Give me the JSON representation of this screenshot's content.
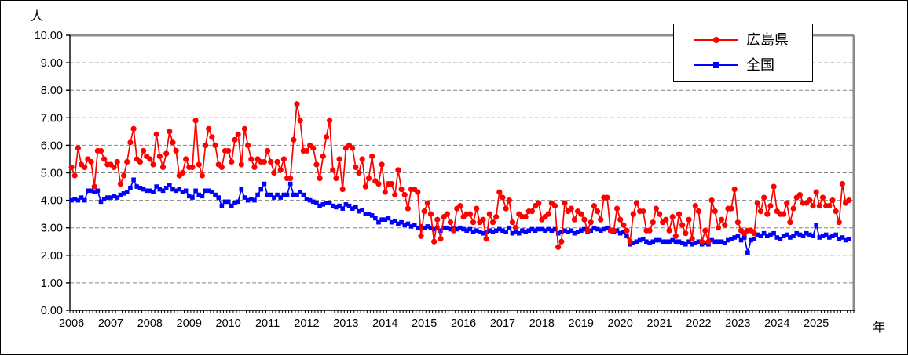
{
  "chart_data": {
    "type": "line",
    "title": "",
    "y_axis_label": "人",
    "x_axis_label": "年",
    "ylim": [
      0,
      10
    ],
    "y_tick_labels": [
      "0.00",
      "1.00",
      "2.00",
      "3.00",
      "4.00",
      "5.00",
      "6.00",
      "7.00",
      "8.00",
      "9.00",
      "10.00"
    ],
    "years": [
      2006,
      2007,
      2008,
      2009,
      2010,
      2011,
      2012,
      2013,
      2014,
      2015,
      2016,
      2017,
      2018,
      2019,
      2020,
      2021,
      2022,
      2023,
      2024,
      2025
    ],
    "x_unit": "month",
    "x_range": [
      "2006-01",
      "2025-11"
    ],
    "grid": "horizontal-dashed",
    "legend_position": "top-right",
    "background": "#FFFFFF",
    "grid_color": "#848484",
    "plot_border_color": "#8C8C8C",
    "axis_color": "#000000",
    "series": [
      {
        "name": "広島県",
        "color": "#FF0000",
        "marker": "circle",
        "values": [
          5.2,
          4.9,
          5.9,
          5.3,
          5.2,
          5.5,
          5.4,
          4.5,
          5.8,
          5.8,
          5.5,
          5.3,
          5.3,
          5.2,
          5.4,
          4.6,
          4.9,
          5.4,
          6.1,
          6.6,
          5.5,
          5.4,
          5.8,
          5.6,
          5.5,
          5.3,
          6.4,
          5.6,
          5.2,
          5.7,
          6.5,
          6.1,
          5.8,
          4.9,
          5.0,
          5.5,
          5.2,
          5.2,
          6.9,
          5.3,
          4.9,
          6.0,
          6.6,
          6.3,
          6.0,
          5.3,
          5.2,
          5.8,
          5.8,
          5.4,
          6.2,
          6.4,
          5.3,
          6.6,
          6.0,
          5.5,
          5.2,
          5.5,
          5.4,
          5.4,
          5.8,
          5.4,
          5.0,
          5.4,
          5.1,
          5.5,
          4.8,
          4.8,
          6.2,
          7.5,
          6.9,
          5.8,
          5.8,
          6.0,
          5.9,
          5.3,
          4.8,
          5.6,
          6.3,
          6.9,
          5.1,
          4.8,
          5.5,
          4.4,
          5.9,
          6.0,
          5.9,
          5.2,
          5.0,
          5.5,
          4.5,
          4.8,
          5.6,
          4.7,
          4.6,
          5.3,
          4.3,
          4.6,
          4.6,
          4.2,
          5.1,
          4.4,
          4.2,
          3.7,
          4.4,
          4.4,
          4.3,
          2.7,
          3.6,
          3.9,
          3.5,
          2.5,
          3.3,
          2.6,
          3.4,
          3.5,
          3.2,
          2.9,
          3.7,
          3.8,
          3.4,
          3.5,
          3.5,
          3.2,
          3.7,
          3.2,
          3.3,
          2.6,
          3.5,
          3.2,
          3.4,
          4.3,
          4.1,
          3.7,
          4.0,
          3.2,
          3.0,
          3.5,
          3.4,
          3.4,
          3.6,
          3.6,
          3.8,
          3.9,
          3.3,
          3.4,
          3.5,
          3.9,
          3.8,
          2.3,
          2.5,
          3.9,
          3.6,
          3.7,
          3.3,
          3.6,
          3.5,
          3.3,
          2.9,
          3.2,
          3.8,
          3.6,
          3.3,
          4.1,
          4.1,
          2.9,
          2.9,
          3.7,
          3.3,
          3.1,
          2.9,
          2.5,
          3.5,
          3.9,
          3.6,
          3.6,
          2.9,
          2.9,
          3.2,
          3.7,
          3.5,
          3.2,
          3.3,
          2.9,
          3.4,
          2.7,
          3.5,
          3.1,
          2.8,
          3.3,
          2.6,
          3.8,
          3.6,
          2.5,
          2.9,
          2.5,
          4.0,
          3.6,
          3.0,
          3.3,
          3.1,
          3.7,
          3.7,
          4.4,
          3.2,
          2.9,
          2.8,
          2.9,
          2.9,
          2.8,
          3.9,
          3.6,
          4.1,
          3.5,
          3.8,
          4.5,
          3.6,
          3.5,
          3.5,
          3.9,
          3.2,
          3.7,
          4.1,
          4.2,
          3.9,
          3.9,
          4.0,
          3.8,
          4.3,
          3.8,
          4.1,
          3.8,
          3.8,
          4.0,
          3.6,
          3.2,
          4.6,
          3.9,
          4.0
        ]
      },
      {
        "name": "全国",
        "color": "#0000FF",
        "marker": "square",
        "values": [
          4.0,
          4.05,
          4.0,
          4.1,
          4.0,
          4.35,
          4.35,
          4.3,
          4.35,
          3.95,
          4.05,
          4.1,
          4.1,
          4.15,
          4.1,
          4.2,
          4.25,
          4.3,
          4.45,
          4.75,
          4.5,
          4.45,
          4.4,
          4.35,
          4.35,
          4.3,
          4.5,
          4.4,
          4.35,
          4.45,
          4.55,
          4.4,
          4.35,
          4.4,
          4.3,
          4.35,
          4.15,
          4.1,
          4.35,
          4.2,
          4.15,
          4.35,
          4.35,
          4.3,
          4.2,
          4.1,
          3.8,
          3.95,
          3.95,
          3.8,
          3.9,
          3.95,
          4.4,
          4.1,
          4.0,
          4.05,
          4.0,
          4.2,
          4.4,
          4.6,
          4.2,
          4.2,
          4.1,
          4.2,
          4.1,
          4.2,
          4.2,
          4.6,
          4.2,
          4.2,
          4.3,
          4.2,
          4.05,
          4.0,
          3.95,
          3.9,
          3.8,
          3.85,
          3.9,
          3.9,
          3.8,
          3.75,
          3.8,
          3.7,
          3.85,
          3.8,
          3.7,
          3.75,
          3.6,
          3.65,
          3.5,
          3.5,
          3.45,
          3.35,
          3.2,
          3.3,
          3.3,
          3.35,
          3.2,
          3.25,
          3.15,
          3.2,
          3.1,
          3.15,
          3.05,
          3.1,
          3.0,
          3.05,
          3.0,
          3.05,
          3.0,
          2.95,
          3.0,
          2.9,
          3.0,
          3.0,
          2.95,
          3.0,
          2.95,
          3.0,
          2.95,
          2.9,
          2.95,
          2.85,
          2.9,
          2.85,
          2.8,
          2.85,
          2.9,
          2.85,
          2.9,
          2.95,
          2.9,
          2.85,
          3.0,
          2.8,
          2.85,
          2.8,
          2.9,
          2.85,
          2.9,
          2.95,
          2.9,
          2.95,
          2.95,
          2.9,
          2.95,
          2.9,
          2.95,
          2.8,
          2.85,
          2.9,
          2.85,
          2.9,
          2.8,
          2.85,
          2.9,
          2.95,
          2.85,
          2.9,
          3.0,
          2.95,
          2.9,
          2.95,
          3.0,
          2.9,
          2.85,
          2.9,
          2.8,
          2.85,
          2.7,
          2.4,
          2.45,
          2.5,
          2.55,
          2.6,
          2.5,
          2.45,
          2.5,
          2.55,
          2.55,
          2.5,
          2.5,
          2.5,
          2.55,
          2.5,
          2.5,
          2.45,
          2.4,
          2.5,
          2.4,
          2.45,
          2.5,
          2.4,
          2.45,
          2.4,
          2.55,
          2.5,
          2.5,
          2.5,
          2.45,
          2.55,
          2.6,
          2.65,
          2.7,
          2.55,
          2.65,
          2.1,
          2.55,
          2.6,
          2.75,
          2.7,
          2.8,
          2.7,
          2.75,
          2.8,
          2.65,
          2.6,
          2.7,
          2.75,
          2.65,
          2.7,
          2.8,
          2.75,
          2.7,
          2.8,
          2.75,
          2.7,
          3.1,
          2.65,
          2.7,
          2.75,
          2.65,
          2.7,
          2.75,
          2.6,
          2.65,
          2.55,
          2.6
        ]
      }
    ]
  }
}
